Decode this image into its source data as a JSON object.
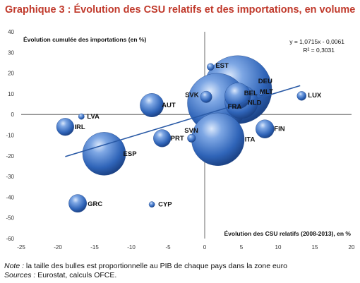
{
  "title": "Graphique 3 : Évolution des CSU relatifs et des importations, en volume",
  "note_label": "Note :",
  "note_text": " la taille des bulles est proportionnelle au PIB de chaque pays dans la zone euro",
  "sources_label": "Sources :",
  "sources_text": " Eurostat, calculs OFCE.",
  "chart_data": {
    "type": "scatter",
    "xlabel": "Évolution des CSU relatifs (2008-2013), en %",
    "ylabel": "Évolution cumulée des importations (en %)",
    "xlim": [
      -25,
      20
    ],
    "ylim": [
      -60,
      40
    ],
    "xticks": [
      -25,
      -20,
      -15,
      -10,
      -5,
      0,
      5,
      10,
      15,
      20
    ],
    "yticks": [
      -60,
      -50,
      -40,
      -30,
      -20,
      -10,
      0,
      10,
      20,
      30,
      40
    ],
    "grid": false,
    "regression": {
      "equation": "y = 1,0715x - 0,0061",
      "r2": "R² = 0,3031",
      "slope": 1.0715,
      "intercept": -0.0061,
      "x_range": [
        -19,
        13
      ]
    },
    "points": [
      {
        "label": "EST",
        "x": 0.8,
        "y": 23,
        "size": 0.3
      },
      {
        "label": "DEU",
        "x": 4.5,
        "y": 12,
        "size": 27.5
      },
      {
        "label": "BEL",
        "x": 4.5,
        "y": 9,
        "size": 4
      },
      {
        "label": "NLD",
        "x": 5.0,
        "y": 6,
        "size": 6.5
      },
      {
        "label": "FRA",
        "x": 1.7,
        "y": 5.5,
        "size": 21
      },
      {
        "label": "MLT",
        "x": 7.7,
        "y": 10,
        "size": 0.1
      },
      {
        "label": "LUX",
        "x": 13.2,
        "y": 9,
        "size": 0.5
      },
      {
        "label": "SVK",
        "x": 0.2,
        "y": 8.5,
        "size": 0.8
      },
      {
        "label": "AUT",
        "x": -7.2,
        "y": 4.5,
        "size": 3.3
      },
      {
        "label": "LVA",
        "x": -16.8,
        "y": -1,
        "size": 0.2
      },
      {
        "label": "IRL",
        "x": -19.0,
        "y": -6,
        "size": 1.8
      },
      {
        "label": "PRT",
        "x": -5.8,
        "y": -11.5,
        "size": 1.8
      },
      {
        "label": "SVN",
        "x": -1.8,
        "y": -11.5,
        "size": 0.4
      },
      {
        "label": "ITA",
        "x": 1.8,
        "y": -12,
        "size": 16.5
      },
      {
        "label": "FIN",
        "x": 8.2,
        "y": -7,
        "size": 2
      },
      {
        "label": "ESP",
        "x": -13.7,
        "y": -19,
        "size": 11
      },
      {
        "label": "GRC",
        "x": -17.3,
        "y": -43,
        "size": 1.9
      },
      {
        "label": "CYP",
        "x": -7.2,
        "y": -43.5,
        "size": 0.2
      }
    ]
  }
}
